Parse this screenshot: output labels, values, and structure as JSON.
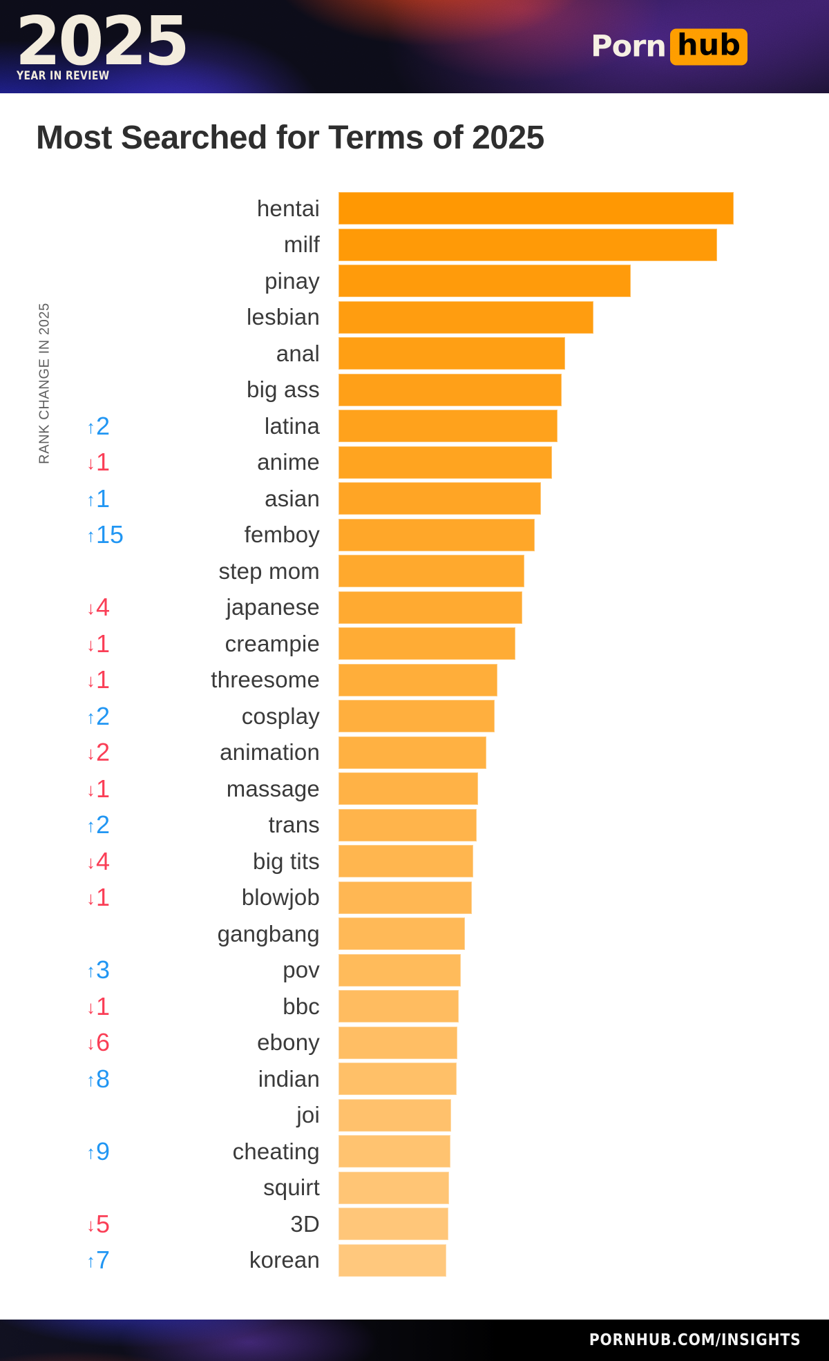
{
  "header": {
    "logo_year": "2025",
    "logo_subtitle": "YEAR IN REVIEW",
    "brand": {
      "porn": "Porn",
      "hub": "hub",
      "accent": "#FF9900"
    }
  },
  "title": "Most Searched for Terms of 2025",
  "axis_label": "RANK CHANGE IN 2025",
  "footer": {
    "url": "PORNHUB.COM/INSIGHTS"
  },
  "colors": {
    "bar_top": "#FF9803",
    "bar_bottom": "#FFC87D",
    "rank_up": "#2196F3",
    "rank_down": "#FA3E56",
    "title_text": "#2E2E2E",
    "label_text": "#3A3A3A"
  },
  "chart_data": {
    "type": "bar",
    "orientation": "horizontal",
    "title": "Most Searched for Terms of 2025",
    "ylabel": "RANK CHANGE IN 2025",
    "values_note": "no numeric axis shown; bar lengths relative to top term (hentai = 100)",
    "legend": "none",
    "grid": false,
    "categories": [
      "hentai",
      "milf",
      "pinay",
      "lesbian",
      "anal",
      "big ass",
      "latina",
      "anime",
      "asian",
      "femboy",
      "step mom",
      "japanese",
      "creampie",
      "threesome",
      "cosplay",
      "animation",
      "massage",
      "trans",
      "big tits",
      "blowjob",
      "gangbang",
      "pov",
      "bbc",
      "ebony",
      "indian",
      "joi",
      "cheating",
      "squirt",
      "3D",
      "korean"
    ],
    "values": [
      100,
      95.8,
      74.0,
      64.5,
      57.3,
      56.5,
      55.4,
      54.0,
      51.2,
      49.7,
      47.0,
      46.5,
      44.8,
      40.2,
      39.5,
      37.4,
      35.3,
      35.0,
      34.1,
      33.7,
      32.0,
      30.9,
      30.4,
      30.1,
      29.9,
      28.5,
      28.3,
      28.0,
      27.8,
      27.3
    ],
    "rank_changes": [
      null,
      null,
      null,
      null,
      null,
      null,
      2,
      -1,
      1,
      15,
      null,
      -4,
      -1,
      -1,
      2,
      -2,
      -1,
      2,
      -4,
      -1,
      null,
      3,
      -1,
      -6,
      8,
      null,
      9,
      null,
      -5,
      7
    ]
  }
}
